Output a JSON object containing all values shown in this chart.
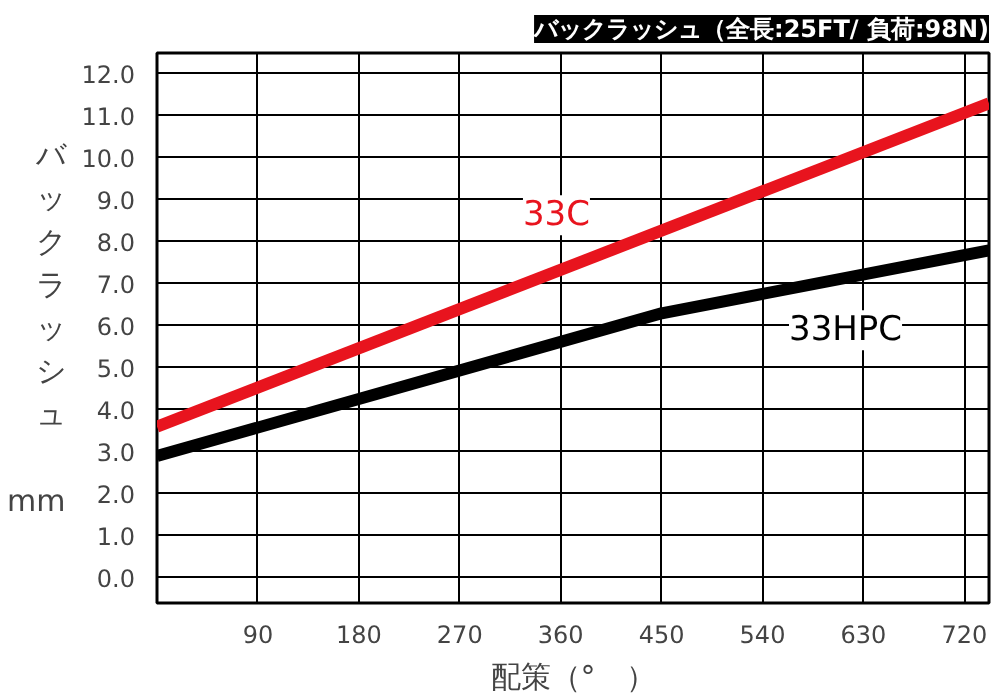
{
  "chart_data": {
    "type": "line",
    "title": "バックラッシュ（全長:25FT/ 負荷:98N)",
    "xlabel": "配策（°　）",
    "ylabel": "バックラッシュ",
    "annotations": [
      "mm"
    ],
    "series": [
      {
        "name": "33C",
        "color": "#e8141e",
        "x": [
          0,
          742
        ],
        "values": [
          3.6,
          11.3
        ]
      },
      {
        "name": "33HPC",
        "color": "#000000",
        "x": [
          0,
          450,
          742
        ],
        "values": [
          2.9,
          6.3,
          7.8
        ]
      }
    ],
    "xlim": [
      0,
      742
    ],
    "xticks": [
      90,
      180,
      270,
      360,
      450,
      540,
      630,
      720
    ],
    "ylim": [
      -0.6,
      12.5
    ],
    "yticks": [
      {
        "value": 0,
        "label": "0.0"
      },
      {
        "value": 1,
        "label": "1.0"
      },
      {
        "value": 2,
        "label": "2.0"
      },
      {
        "value": 3,
        "label": "3.0"
      },
      {
        "value": 4,
        "label": "4.0"
      },
      {
        "value": 5,
        "label": "5.0"
      },
      {
        "value": 6,
        "label": "6.0"
      },
      {
        "value": 7,
        "label": "7.0"
      },
      {
        "value": 8,
        "label": "8.0"
      },
      {
        "value": 9,
        "label": "9.0"
      },
      {
        "value": 10,
        "label": "10.0"
      },
      {
        "value": 11,
        "label": "11.0"
      },
      {
        "value": 12,
        "label": "12.0"
      }
    ],
    "grid": true,
    "marker": "none",
    "line_style": "solid"
  }
}
